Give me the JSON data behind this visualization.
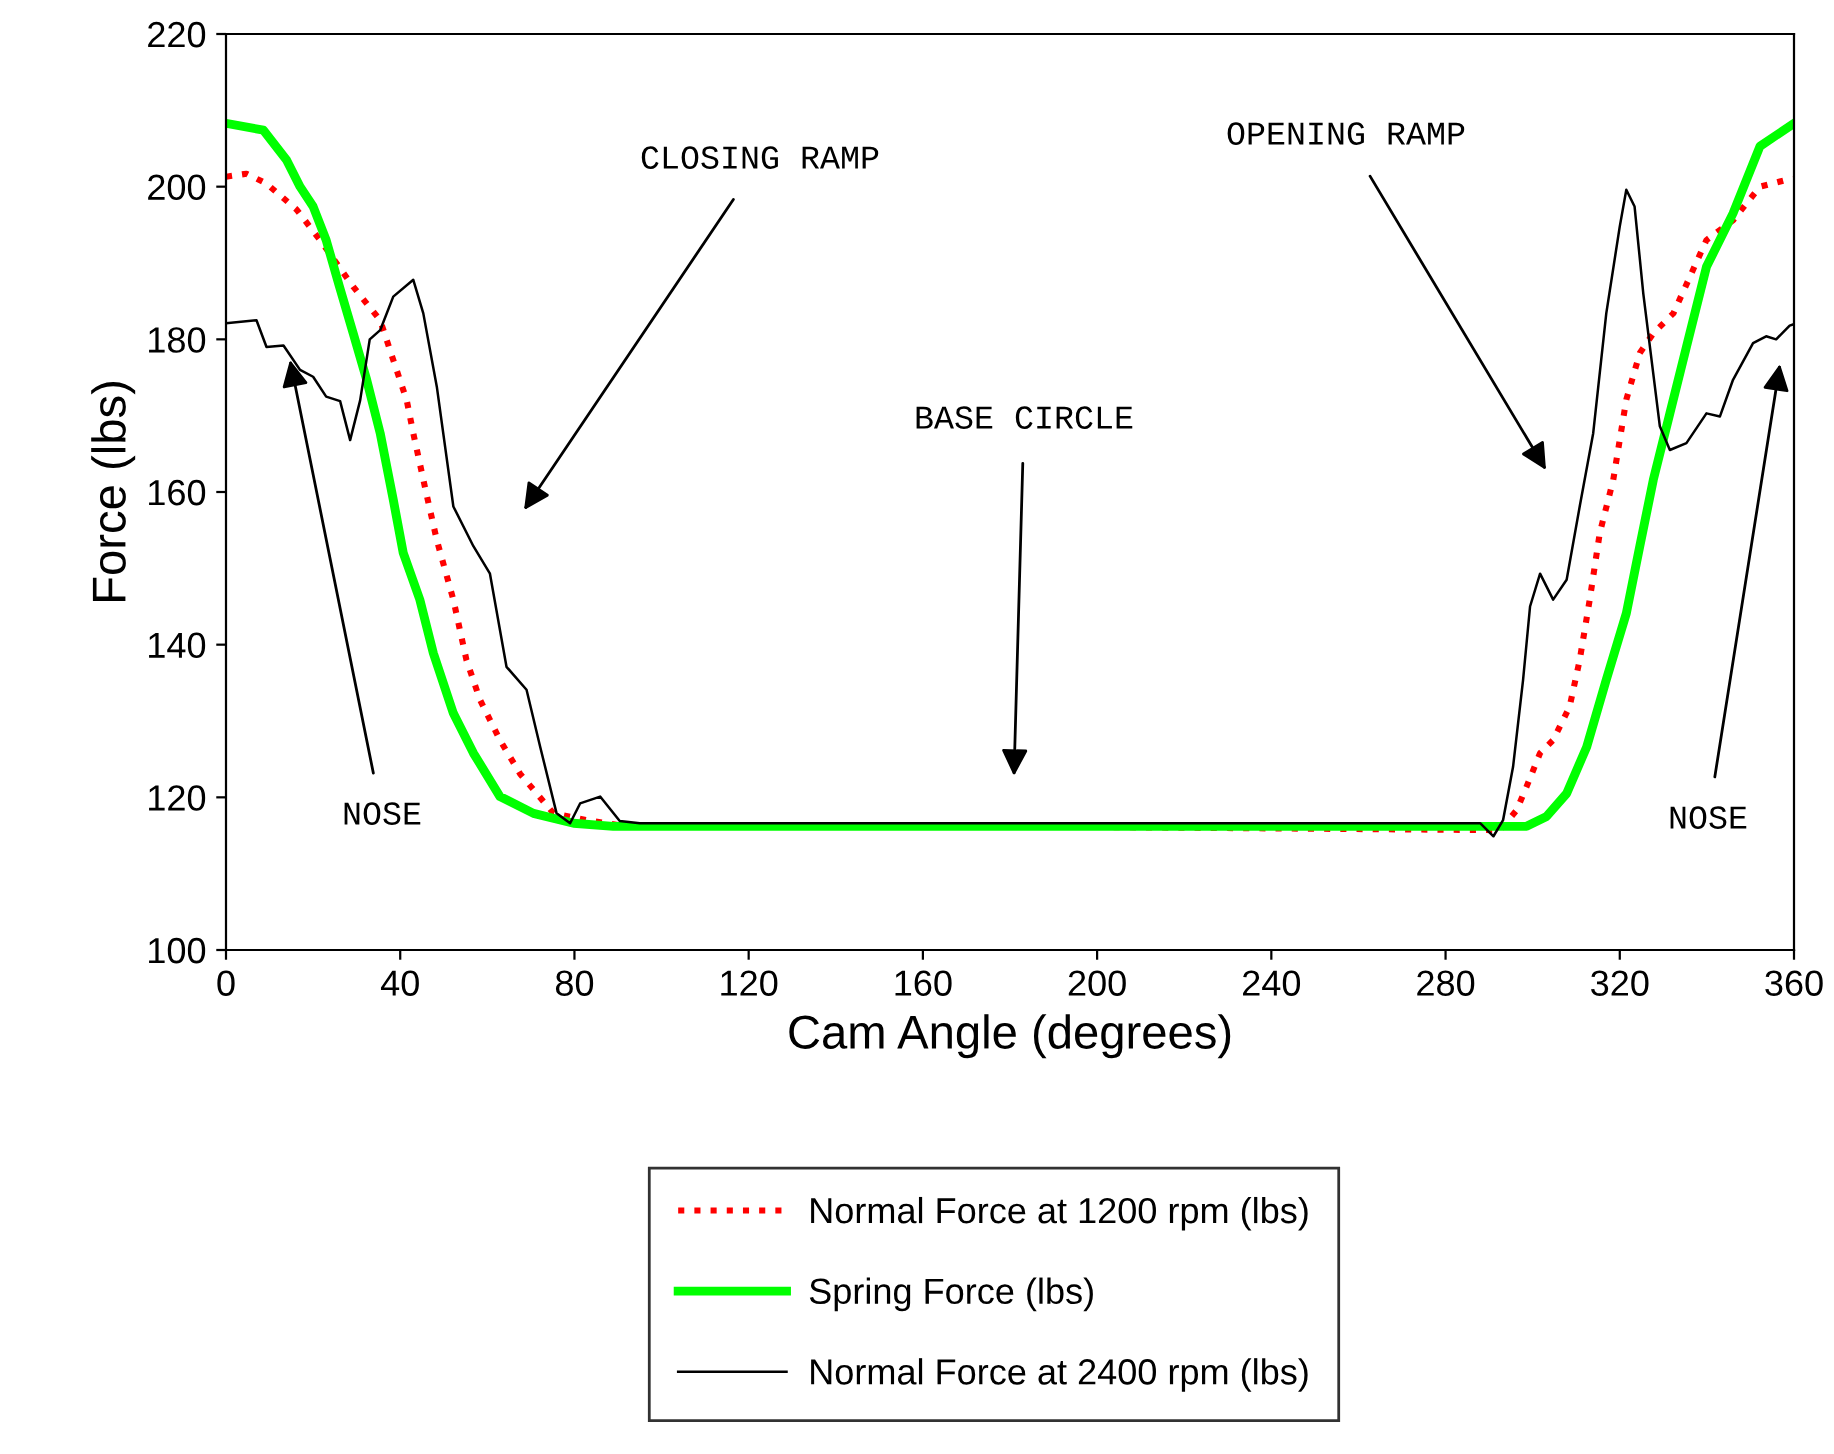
{
  "chart_data": {
    "type": "line",
    "xlabel": "Cam Angle (degrees)",
    "ylabel": "Force (lbs)",
    "xlim": [
      0,
      360
    ],
    "xticks": [
      0,
      40,
      80,
      120,
      160,
      200,
      240,
      280,
      320,
      360
    ],
    "ylim": [
      100,
      220
    ],
    "yticks": [
      100,
      120,
      140,
      160,
      180,
      200,
      220
    ],
    "grid": false,
    "legend": "bottom",
    "series": [
      {
        "name": "Normal Force at 1200 rpm (lbs)",
        "color": "#ff0000",
        "line_style": "dotted",
        "x": [
          0,
          4.7,
          9.3,
          16.2,
          21.6,
          29.2,
          35.4,
          38.4,
          41.5,
          43,
          46,
          48.4,
          52.2,
          55.2,
          58.3,
          62.9,
          67.5,
          75.2,
          82.8,
          92,
          180,
          292.5,
          296.3,
          298.6,
          301.7,
          304.7,
          308.5,
          310.8,
          313.1,
          315.4,
          318.5,
          321.5,
          324.6,
          327.7,
          332.3,
          339.9,
          346,
          352.2,
          358.3,
          360
        ],
        "values": [
          201.3,
          201.7,
          200.4,
          197,
          193,
          186.9,
          182.5,
          177.3,
          172,
          167.7,
          159.8,
          153.7,
          145.9,
          138,
          132.8,
          127.5,
          123.1,
          117.9,
          117,
          116.2,
          116.2,
          115.7,
          118.3,
          121.4,
          125.8,
          127.5,
          131.9,
          138,
          145.9,
          154.6,
          161.6,
          172.1,
          178.2,
          180.8,
          183.4,
          193,
          195.6,
          200,
          200.9,
          201
        ]
      },
      {
        "name": "Spring Force (lbs)",
        "color": "#00ff00",
        "line_style": "solid",
        "x": [
          0,
          8.6,
          13.9,
          17,
          20,
          23,
          26,
          29.2,
          32.3,
          35.4,
          38.4,
          40.7,
          44.5,
          47.6,
          52.2,
          56.8,
          62.9,
          70.6,
          79.8,
          88.9,
          180,
          294,
          298.6,
          303.2,
          307.8,
          312.4,
          316.9,
          321.5,
          324.6,
          327.7,
          331.5,
          335.3,
          339.9,
          346,
          352.2,
          360
        ],
        "values": [
          208.3,
          207.4,
          203.5,
          200,
          197.4,
          193,
          187,
          180.8,
          174.7,
          167.7,
          159,
          152,
          145.9,
          138.9,
          131,
          125.8,
          120.1,
          117.9,
          116.6,
          116.2,
          116.2,
          116.2,
          116.2,
          117.5,
          120.5,
          126.6,
          135.4,
          144.1,
          152.9,
          161.6,
          170.3,
          179,
          189.5,
          196.5,
          205.3,
          208.3
        ]
      },
      {
        "name": "Normal Force at 2400 rpm (lbs)",
        "color": "#000000",
        "line_style": "solid",
        "x": [
          0,
          7,
          9.3,
          13.2,
          17,
          20,
          23,
          26.2,
          28.5,
          30.8,
          33,
          35.4,
          38.4,
          43,
          45.3,
          48.4,
          52.2,
          56.8,
          60.6,
          64.4,
          69,
          72.1,
          75.9,
          79,
          81.3,
          85.9,
          90.4,
          95,
          180,
          288,
          291,
          293.2,
          295.5,
          297.8,
          299.4,
          301.7,
          304.7,
          307.8,
          310.8,
          313.9,
          316.9,
          320,
          321.5,
          323.4,
          325.4,
          329.2,
          331.5,
          335.3,
          339.9,
          343,
          346,
          350.6,
          353.6,
          355.9,
          359,
          360
        ],
        "values": [
          182.1,
          182.5,
          179,
          179.2,
          176,
          175.1,
          172.5,
          171.9,
          166.8,
          172,
          180,
          181.2,
          185.6,
          187.8,
          183.4,
          173.8,
          158.1,
          152.9,
          149.3,
          137.1,
          134.1,
          126.7,
          117.9,
          116.6,
          119.2,
          120.1,
          116.9,
          116.6,
          116.6,
          116.6,
          114.9,
          117,
          124,
          135.4,
          145,
          149.3,
          145.9,
          148.5,
          158.1,
          167.7,
          183.4,
          194.8,
          199.6,
          197.4,
          186,
          168.6,
          165.5,
          166.4,
          170.3,
          169.9,
          174.7,
          179.5,
          180.4,
          180,
          181.8,
          182
        ]
      }
    ],
    "annotations": [
      "CLOSING RAMP",
      "OPENING RAMP",
      "BASE CIRCLE",
      {
        "text": "NOSE",
        "x": 14.7,
        "y": 177.3
      },
      "NOSE"
    ]
  }
}
